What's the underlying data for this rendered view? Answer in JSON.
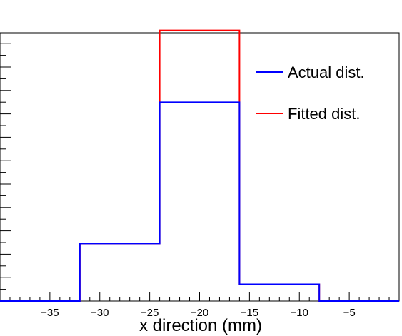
{
  "chart_data": {
    "type": "histogram",
    "xlabel": "x direction (mm)",
    "ylabel": "",
    "xlim": [
      -40,
      0
    ],
    "ylim": [
      0,
      1.12
    ],
    "grid": false,
    "legend_position": "top-right",
    "bin_edges": [
      -40,
      -32,
      -24,
      -16,
      -8,
      0
    ],
    "x_ticks": [
      -35,
      -30,
      -25,
      -20,
      -15,
      -10,
      -5
    ],
    "x_tick_labels": [
      "−35",
      "−30",
      "−25",
      "−20",
      "−15",
      "−10",
      "−5"
    ],
    "series": [
      {
        "name": "Actual dist.",
        "color": "#0000ff",
        "values": [
          0,
          0.24,
          0.83,
          0.07,
          0
        ]
      },
      {
        "name": "Fitted dist.",
        "color": "#ff0000",
        "values": [
          0,
          0.24,
          1.13,
          0.07,
          0
        ]
      }
    ]
  }
}
